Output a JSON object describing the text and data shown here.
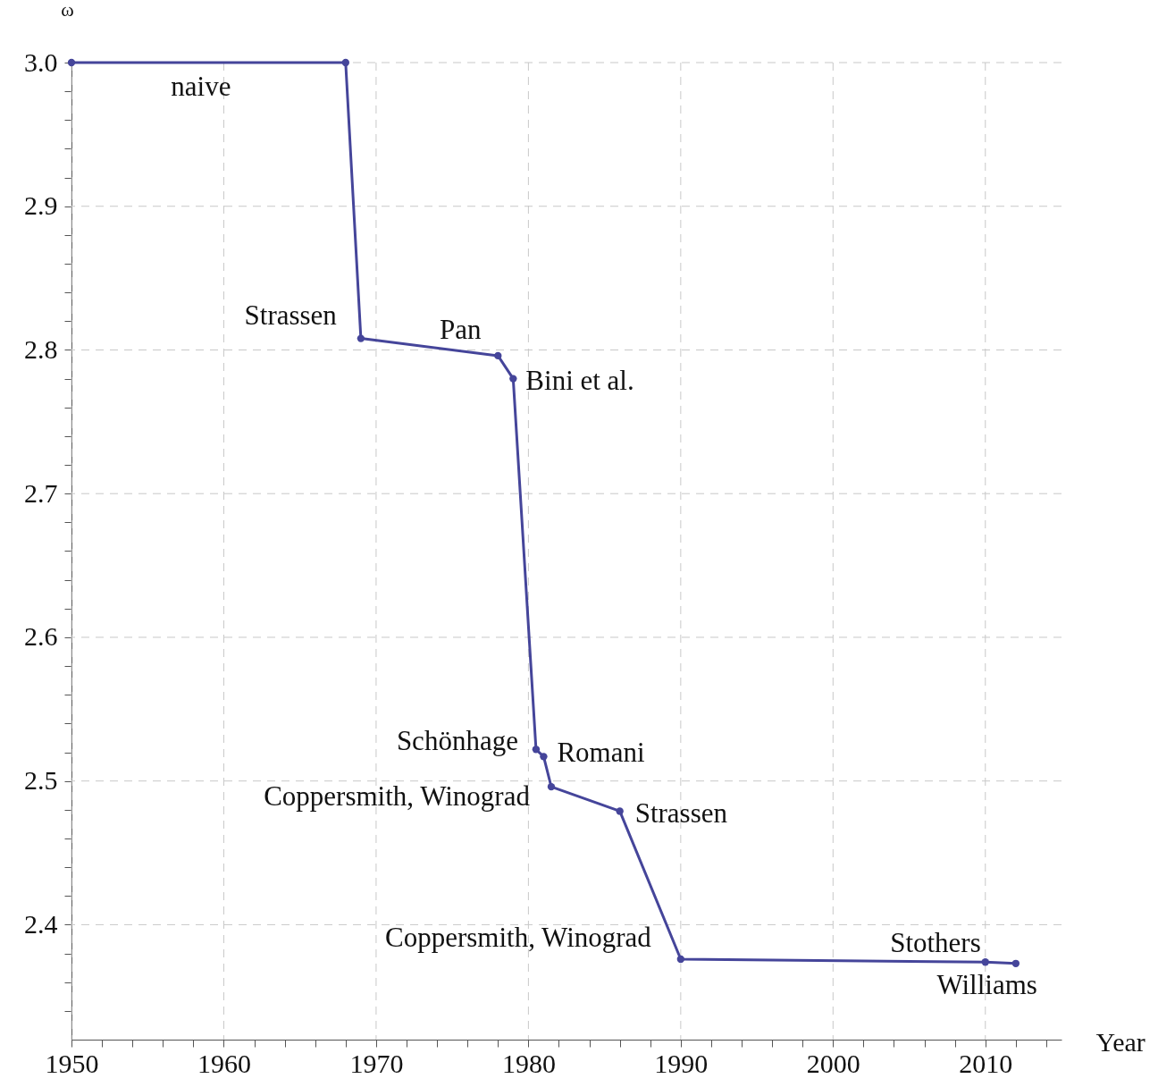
{
  "chart_data": {
    "type": "line",
    "xlabel": "Year",
    "ylabel": "ω",
    "x": [
      1950,
      1968,
      1969,
      1978,
      1979,
      1980.5,
      1981,
      1981.5,
      1986,
      1990,
      2010,
      2012
    ],
    "series": [
      {
        "color": "#45459a",
        "values": [
          3.0,
          3.0,
          2.808,
          2.796,
          2.78,
          2.522,
          2.517,
          2.496,
          2.479,
          2.376,
          2.374,
          2.373
        ]
      }
    ],
    "marker": "circle",
    "line_style": "solid",
    "grid": true,
    "xlim": [
      1950,
      2015
    ],
    "xticks": [
      1950,
      {
        "value": 1952,
        "label": null
      },
      {
        "value": 1954,
        "label": null
      },
      {
        "value": 1956,
        "label": null
      },
      {
        "value": 1958,
        "label": null
      },
      1960,
      {
        "value": 1962,
        "label": null
      },
      {
        "value": 1964,
        "label": null
      },
      {
        "value": 1966,
        "label": null
      },
      {
        "value": 1968,
        "label": null
      },
      1970,
      {
        "value": 1972,
        "label": null
      },
      {
        "value": 1974,
        "label": null
      },
      {
        "value": 1976,
        "label": null
      },
      {
        "value": 1978,
        "label": null
      },
      1980,
      {
        "value": 1982,
        "label": null
      },
      {
        "value": 1984,
        "label": null
      },
      {
        "value": 1986,
        "label": null
      },
      {
        "value": 1988,
        "label": null
      },
      1990,
      {
        "value": 1992,
        "label": null
      },
      {
        "value": 1994,
        "label": null
      },
      {
        "value": 1996,
        "label": null
      },
      {
        "value": 1998,
        "label": null
      },
      2000,
      {
        "value": 2002,
        "label": null
      },
      {
        "value": 2004,
        "label": null
      },
      {
        "value": 2006,
        "label": null
      },
      {
        "value": 2008,
        "label": null
      },
      2010,
      {
        "value": 2012,
        "label": null
      },
      {
        "value": 2014,
        "label": null
      }
    ],
    "ylim": [
      2.32,
      3.0
    ],
    "yticks": [
      {
        "value": 2.34,
        "label": null
      },
      {
        "value": 2.36,
        "label": null
      },
      {
        "value": 2.38,
        "label": null
      },
      2.4,
      {
        "value": 2.42,
        "label": null
      },
      {
        "value": 2.44,
        "label": null
      },
      {
        "value": 2.46,
        "label": null
      },
      {
        "value": 2.48,
        "label": null
      },
      2.5,
      {
        "value": 2.52,
        "label": null
      },
      {
        "value": 2.54,
        "label": null
      },
      {
        "value": 2.56,
        "label": null
      },
      {
        "value": 2.58,
        "label": null
      },
      2.6,
      {
        "value": 2.62,
        "label": null
      },
      {
        "value": 2.64,
        "label": null
      },
      {
        "value": 2.66,
        "label": null
      },
      {
        "value": 2.68,
        "label": null
      },
      2.7,
      {
        "value": 2.72,
        "label": null
      },
      {
        "value": 2.74,
        "label": null
      },
      {
        "value": 2.76,
        "label": null
      },
      {
        "value": 2.78,
        "label": null
      },
      2.8,
      {
        "value": 2.82,
        "label": null
      },
      {
        "value": 2.84,
        "label": null
      },
      {
        "value": 2.86,
        "label": null
      },
      {
        "value": 2.88,
        "label": null
      },
      2.9,
      {
        "value": 2.92,
        "label": null
      },
      {
        "value": 2.94,
        "label": null
      },
      {
        "value": 2.96,
        "label": null
      },
      {
        "value": 2.98,
        "label": null
      },
      {
        "value": 3.0,
        "label": "3.0"
      }
    ],
    "annotations": [
      {
        "text": "naive",
        "x": 1958.5,
        "y": 3.0
      },
      {
        "text": "Strassen",
        "x": 1969,
        "y": 2.808
      },
      {
        "text": "Pan",
        "x": 1978,
        "y": 2.796
      },
      {
        "text": "Bini et al.",
        "x": 1979,
        "y": 2.78
      },
      {
        "text": "Schönhage",
        "x": 1980.5,
        "y": 2.522
      },
      {
        "text": "Romani",
        "x": 1981,
        "y": 2.517
      },
      {
        "text": "Coppersmith, Winograd",
        "x": 1981.5,
        "y": 2.496
      },
      {
        "text": "Strassen",
        "x": 1986,
        "y": 2.479
      },
      {
        "text": "Coppersmith, Winograd",
        "x": 1990,
        "y": 2.376
      },
      {
        "text": "Stothers",
        "x": 2010,
        "y": 2.374
      },
      {
        "text": "Williams",
        "x": 2012,
        "y": 2.373
      }
    ]
  }
}
